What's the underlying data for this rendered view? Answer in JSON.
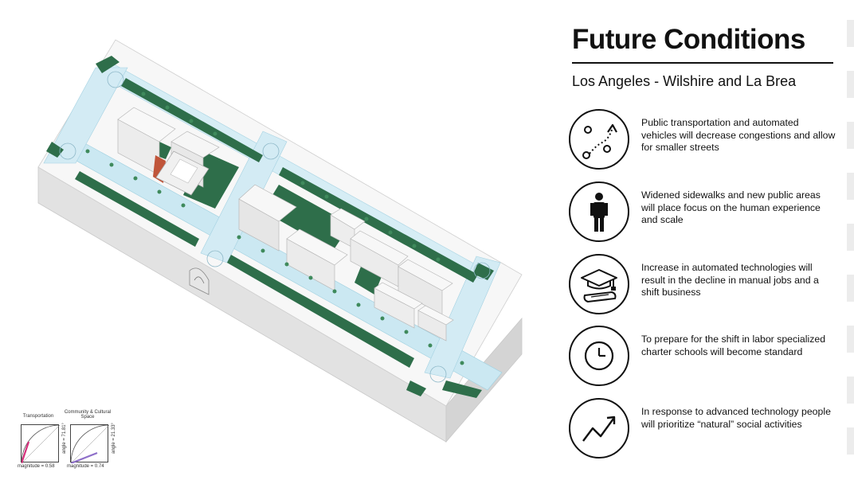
{
  "header": {
    "title": "Future Conditions",
    "subtitle": "Los Angeles - Wilshire and La Brea"
  },
  "items": [
    {
      "icon": "network-nodes-icon",
      "text": "Public transportation and automated vehicles will decrease congestions and allow for smaller streets"
    },
    {
      "icon": "person-icon",
      "text": "Widened sidewalks and new public areas will place focus on the human experience and scale"
    },
    {
      "icon": "graduation-cap-diploma-icon",
      "text": "Increase in automated technologies will result in the decline in manual jobs and a shift business"
    },
    {
      "icon": "clock-icon",
      "text": "To prepare for the shift in labor specialized charter schools will become standard"
    },
    {
      "icon": "trend-arrow-icon",
      "text": "In response to advanced technology people will prioritize “natural” social activities"
    }
  ],
  "metrics": [
    {
      "label": "Transportation",
      "angle": "angle = 71.81°",
      "magnitude": "magnitude = 0.58",
      "vector_color": "#d6307c"
    },
    {
      "label": "Community & Cultural Space",
      "angle": "angle = 21.33°",
      "magnitude": "magnitude = 0.74",
      "vector_color": "#8e6fc9"
    }
  ],
  "colors": {
    "green": "#2e6e4a",
    "street": "#bfe3ef",
    "base_top": "#f6f6f6",
    "base_side": "#dedede",
    "text": "#111111"
  }
}
